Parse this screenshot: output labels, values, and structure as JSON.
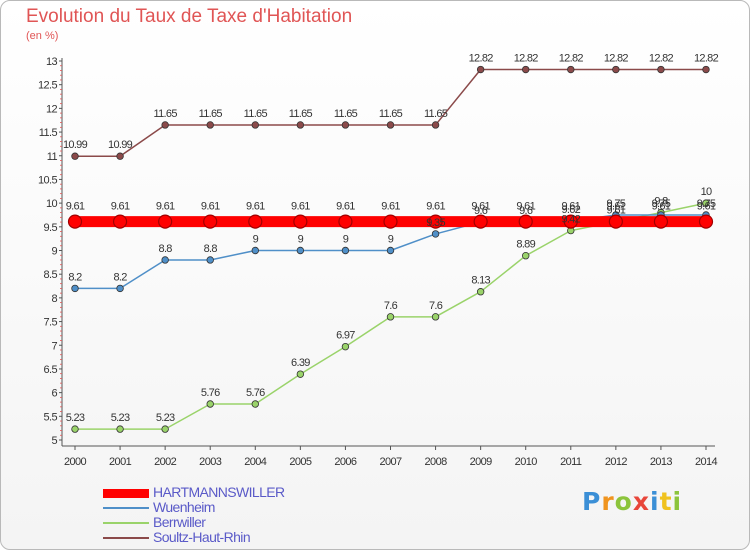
{
  "header": {
    "title": "Evolution du Taux de Taxe d'Habitation",
    "unit": "(en %)"
  },
  "chart_data": {
    "type": "line",
    "title": "Evolution du Taux de Taxe d'Habitation",
    "ylabel": "(en %)",
    "x": [
      "2000",
      "2001",
      "2002",
      "2003",
      "2004",
      "2005",
      "2006",
      "2007",
      "2008",
      "2009",
      "2010",
      "2011",
      "2012",
      "2013",
      "2014"
    ],
    "ylim": [
      5,
      13
    ],
    "yticks": [
      "5",
      "5.5",
      "6",
      "6.5",
      "7",
      "7.5",
      "8",
      "8.5",
      "9",
      "9.5",
      "10",
      "10.5",
      "11",
      "11.5",
      "12",
      "12.5",
      "13"
    ],
    "grid": false,
    "legend_position": "bottom-left",
    "series": [
      {
        "name": "HARTMANNSWILLER",
        "color": "#ff0000",
        "values": [
          9.61,
          9.61,
          9.61,
          9.61,
          9.61,
          9.61,
          9.61,
          9.61,
          9.61,
          9.61,
          9.61,
          9.61,
          9.61,
          9.61,
          9.61
        ],
        "labels": [
          "9.61",
          "9.61",
          "9.61",
          "9.61",
          "9.61",
          "9.61",
          "9.61",
          "9.61",
          "9.61",
          "9.61",
          "9.61",
          "9.61",
          "9.61",
          "9.61",
          "9.61"
        ]
      },
      {
        "name": "Wuenheim",
        "color": "#4f8fc8",
        "values": [
          8.2,
          8.2,
          8.8,
          8.8,
          9,
          9,
          9,
          9,
          9.35,
          9.6,
          9.6,
          9.62,
          9.75,
          9.75,
          9.75
        ],
        "labels": [
          "8.2",
          "8.2",
          "8.8",
          "8.8",
          "9",
          "9",
          "9",
          "9",
          "9.35",
          "9.6",
          "9.6",
          "9.62",
          "9.75",
          "9.75",
          "9.75"
        ]
      },
      {
        "name": "Berrwiller",
        "color": "#9ad36a",
        "values": [
          5.23,
          5.23,
          5.23,
          5.76,
          5.76,
          6.39,
          6.97,
          7.6,
          7.6,
          8.13,
          8.89,
          9.42,
          9.61,
          9.8,
          10
        ],
        "labels": [
          "5.23",
          "5.23",
          "5.23",
          "5.76",
          "5.76",
          "6.39",
          "6.97",
          "7.6",
          "7.6",
          "8.13",
          "8.89",
          "9.42",
          "9.61",
          "9.8",
          "10"
        ]
      },
      {
        "name": "Soultz-Haut-Rhin",
        "color": "#8b4a4a",
        "values": [
          10.99,
          10.99,
          11.65,
          11.65,
          11.65,
          11.65,
          11.65,
          11.65,
          11.65,
          12.82,
          12.82,
          12.82,
          12.82,
          12.82,
          12.82
        ],
        "labels": [
          "10.99",
          "10.99",
          "11.65",
          "11.65",
          "11.65",
          "11.65",
          "11.65",
          "11.65",
          "11.65",
          "12.82",
          "12.82",
          "12.82",
          "12.82",
          "12.82",
          "12.82"
        ]
      }
    ]
  },
  "legend": {
    "items": [
      {
        "label": "HARTMANNSWILLER",
        "color": "#ff0000"
      },
      {
        "label": "Wuenheim",
        "color": "#4f8fc8"
      },
      {
        "label": "Berrwiller",
        "color": "#9ad36a"
      },
      {
        "label": "Soultz-Haut-Rhin",
        "color": "#8b4a4a"
      }
    ]
  },
  "logo": {
    "letters": [
      {
        "ch": "P",
        "color": "#3b8fd6"
      },
      {
        "ch": "r",
        "color": "#f0941e"
      },
      {
        "ch": "o",
        "color": "#8cc43c"
      },
      {
        "ch": "x",
        "color": "#e8463a"
      },
      {
        "ch": "i",
        "color": "#3b8fd6"
      },
      {
        "ch": "t",
        "color": "#f0c21e"
      },
      {
        "ch": "i",
        "color": "#8cc43c"
      }
    ]
  }
}
